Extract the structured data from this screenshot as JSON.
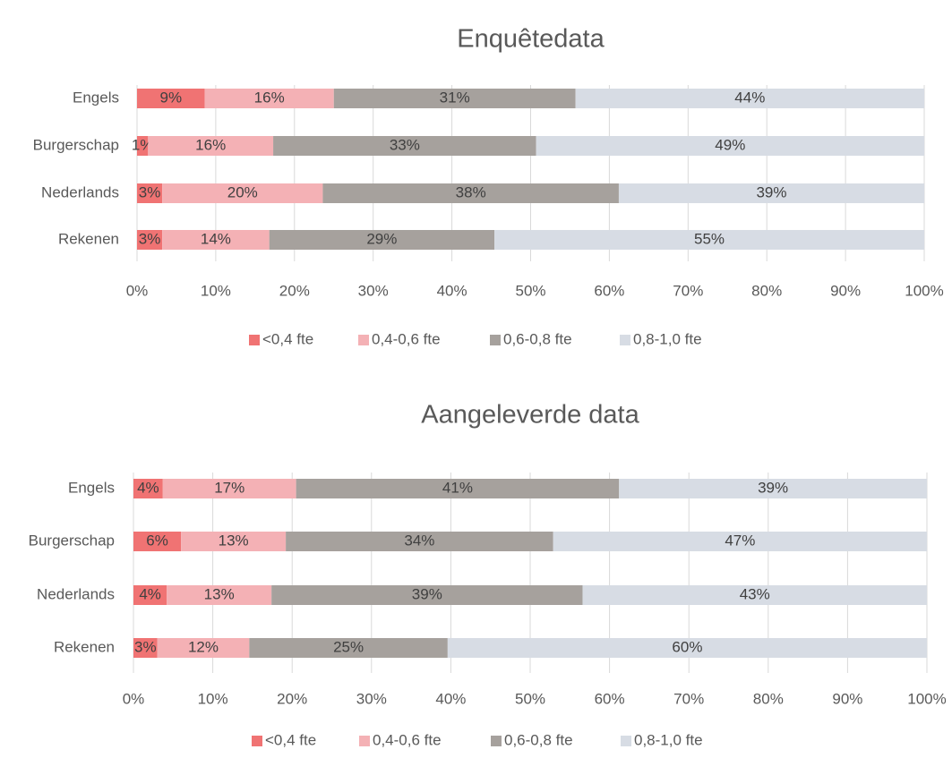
{
  "chart_data": [
    {
      "type": "stacked_bar",
      "title": "Enquêtedata",
      "categories": [
        "Engels",
        "Burgerschap",
        "Nederlands",
        "Rekenen"
      ],
      "series": [
        {
          "name": "<0,4 fte",
          "color": "#f07373",
          "values": [
            8.6,
            1.4,
            3.2,
            3.2
          ],
          "value_labels": [
            "9%",
            "1%",
            "3%",
            "3%"
          ]
        },
        {
          "name": "0,4-0,6 fte",
          "color": "#f4b1b5",
          "values": [
            16.4,
            15.9,
            20.4,
            13.6
          ],
          "value_labels": [
            "16%",
            "16%",
            "20%",
            "14%"
          ]
        },
        {
          "name": "0,6-0,8 fte",
          "color": "#a6a19d",
          "values": [
            30.7,
            33.4,
            37.6,
            28.6
          ],
          "value_labels": [
            "31%",
            "33%",
            "38%",
            "29%"
          ]
        },
        {
          "name": "0,8-1,0 fte",
          "color": "#d7dce4",
          "values": [
            44.3,
            49.3,
            38.8,
            54.6
          ],
          "value_labels": [
            "44%",
            "49%",
            "39%",
            "55%"
          ]
        }
      ],
      "xlim": [
        0,
        100
      ],
      "xticks": [
        {
          "value": 0,
          "label": "0%"
        },
        {
          "value": 10,
          "label": "10%"
        },
        {
          "value": 20,
          "label": "20%"
        },
        {
          "value": 30,
          "label": "30%"
        },
        {
          "value": 40,
          "label": "40%"
        },
        {
          "value": 50,
          "label": "50%"
        },
        {
          "value": 60,
          "label": "60%"
        },
        {
          "value": 70,
          "label": "70%"
        },
        {
          "value": 80,
          "label": "80%"
        },
        {
          "value": 90,
          "label": "90%"
        },
        {
          "value": 100,
          "label": "100%"
        }
      ],
      "grid": true,
      "legend": "bottom"
    },
    {
      "type": "stacked_bar",
      "title": "Aangeleverde data",
      "categories": [
        "Engels",
        "Burgerschap",
        "Nederlands",
        "Rekenen"
      ],
      "series": [
        {
          "name": "<0,4 fte",
          "color": "#f07373",
          "values": [
            3.7,
            6.0,
            4.2,
            3.0
          ],
          "value_labels": [
            "4%",
            "6%",
            "4%",
            "3%"
          ]
        },
        {
          "name": "0,4-0,6 fte",
          "color": "#f4b1b5",
          "values": [
            16.8,
            13.2,
            13.2,
            11.6
          ],
          "value_labels": [
            "17%",
            "13%",
            "13%",
            "12%"
          ]
        },
        {
          "name": "0,6-0,8 fte",
          "color": "#a6a19d",
          "values": [
            40.7,
            33.7,
            39.2,
            25.0
          ],
          "value_labels": [
            "41%",
            "34%",
            "39%",
            "25%"
          ]
        },
        {
          "name": "0,8-1,0 fte",
          "color": "#d7dce4",
          "values": [
            38.8,
            47.1,
            43.4,
            60.4
          ],
          "value_labels": [
            "39%",
            "47%",
            "43%",
            "60%"
          ]
        }
      ],
      "xlim": [
        0,
        100
      ],
      "xticks": [
        {
          "value": 0,
          "label": "0%"
        },
        {
          "value": 10,
          "label": "10%"
        },
        {
          "value": 20,
          "label": "20%"
        },
        {
          "value": 30,
          "label": "30%"
        },
        {
          "value": 40,
          "label": "40%"
        },
        {
          "value": 50,
          "label": "50%"
        },
        {
          "value": 60,
          "label": "60%"
        },
        {
          "value": 70,
          "label": "70%"
        },
        {
          "value": 80,
          "label": "80%"
        },
        {
          "value": 90,
          "label": "90%"
        },
        {
          "value": 100,
          "label": "100%"
        }
      ],
      "grid": true,
      "legend": "bottom"
    }
  ]
}
